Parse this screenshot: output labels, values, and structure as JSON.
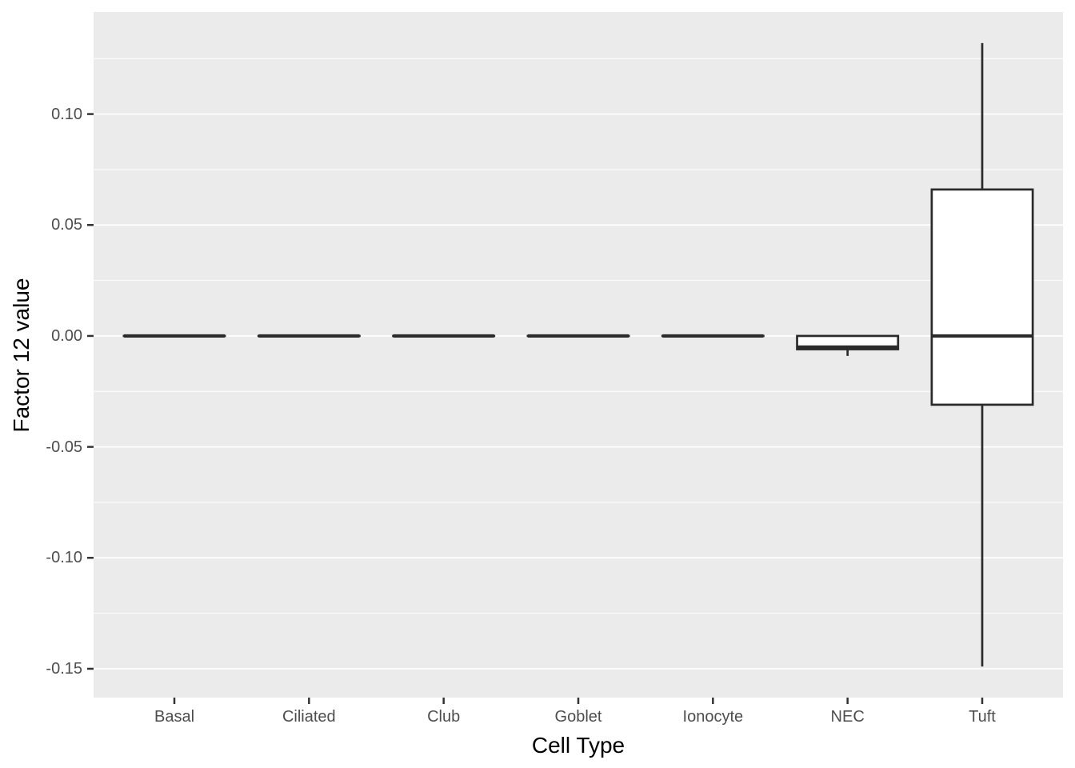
{
  "chart_data": {
    "type": "boxplot",
    "title": "",
    "xlabel": "Cell Type",
    "ylabel": "Factor 12 value",
    "categories": [
      "Basal",
      "Ciliated",
      "Club",
      "Goblet",
      "Ionocyte",
      "NEC",
      "Tuft"
    ],
    "series": [
      {
        "name": "Basal",
        "whisker_low": 0.0,
        "q1": 0.0,
        "median": 0.0,
        "q3": 0.0,
        "whisker_high": 0.0
      },
      {
        "name": "Ciliated",
        "whisker_low": 0.0,
        "q1": 0.0,
        "median": 0.0,
        "q3": 0.0,
        "whisker_high": 0.0
      },
      {
        "name": "Club",
        "whisker_low": 0.0,
        "q1": 0.0,
        "median": 0.0,
        "q3": 0.0,
        "whisker_high": 0.0
      },
      {
        "name": "Goblet",
        "whisker_low": 0.0,
        "q1": 0.0,
        "median": 0.0,
        "q3": 0.0,
        "whisker_high": 0.0
      },
      {
        "name": "Ionocyte",
        "whisker_low": 0.0,
        "q1": 0.0,
        "median": 0.0,
        "q3": 0.0,
        "whisker_high": 0.0
      },
      {
        "name": "NEC",
        "whisker_low": -0.009,
        "q1": -0.006,
        "median": -0.005,
        "q3": 0.0,
        "whisker_high": 0.0
      },
      {
        "name": "Tuft",
        "whisker_low": -0.149,
        "q1": -0.031,
        "median": 0.0,
        "q3": 0.066,
        "whisker_high": 0.132
      }
    ],
    "ylim": [
      -0.163,
      0.146
    ],
    "x_range": [
      0.4,
      7.6
    ],
    "box_width_units": 0.75,
    "yticks_major": [
      0.1,
      0.05,
      0.0,
      -0.05,
      -0.1,
      -0.15
    ],
    "ytick_labels": [
      "0.10",
      "0.05",
      "0.00",
      "-0.05",
      "-0.10",
      "-0.15"
    ],
    "yticks_minor": [
      0.125,
      0.075,
      0.025,
      -0.025,
      -0.075,
      -0.125
    ],
    "grid": true,
    "legend_position": "none",
    "colors": {
      "figure_background": "#FFFFFF",
      "panel_background": "#EBEBEB",
      "grid_major": "#FFFFFF",
      "grid_minor": "#FFFFFF",
      "box_stroke": "#2B2B2B",
      "box_fill": "#FFFFFF",
      "tick_text": "#4D4D4D",
      "axis_title_text": "#000000",
      "tick_mark": "#333333"
    }
  }
}
